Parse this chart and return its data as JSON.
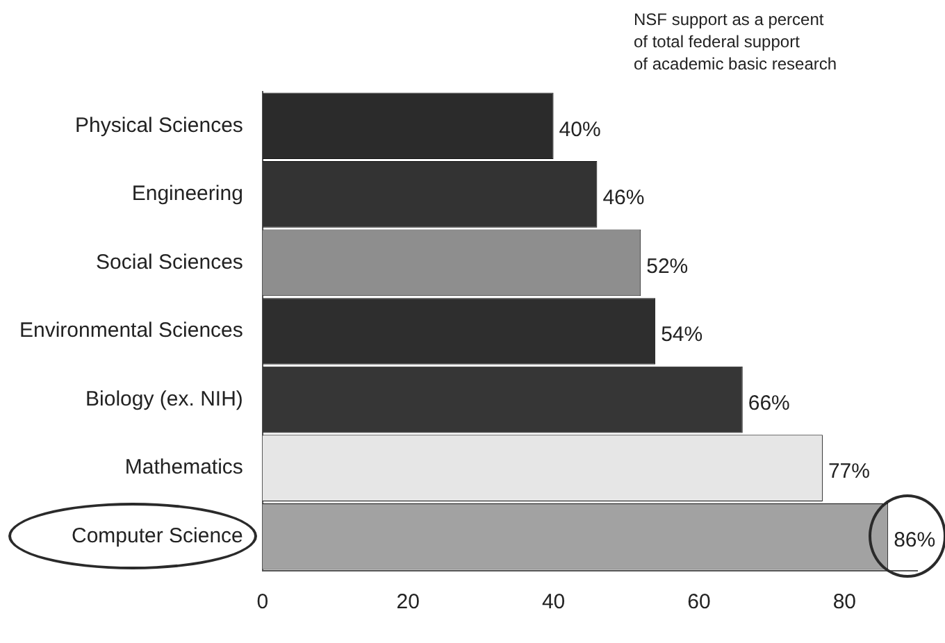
{
  "chart_data": {
    "type": "bar",
    "orientation": "horizontal",
    "title": "NSF support as a percent\nof total federal support\nof academic basic research",
    "categories": [
      "Physical Sciences",
      "Engineering",
      "Social Sciences",
      "Environmental Sciences",
      "Biology (ex. NIH)",
      "Mathematics",
      "Computer Science"
    ],
    "values": [
      40,
      46,
      52,
      54,
      66,
      77,
      86
    ],
    "colors": [
      "#2b2b2b",
      "#333333",
      "#8e8e8e",
      "#2e2e2e",
      "#363636",
      "#e6e6e6",
      "#a2a2a2"
    ],
    "value_labels": [
      "40%",
      "46%",
      "52%",
      "54%",
      "66%",
      "77%",
      "86%"
    ],
    "xlim": [
      0,
      90
    ],
    "xticks": [
      0,
      20,
      40,
      60,
      80
    ],
    "grid": false
  }
}
